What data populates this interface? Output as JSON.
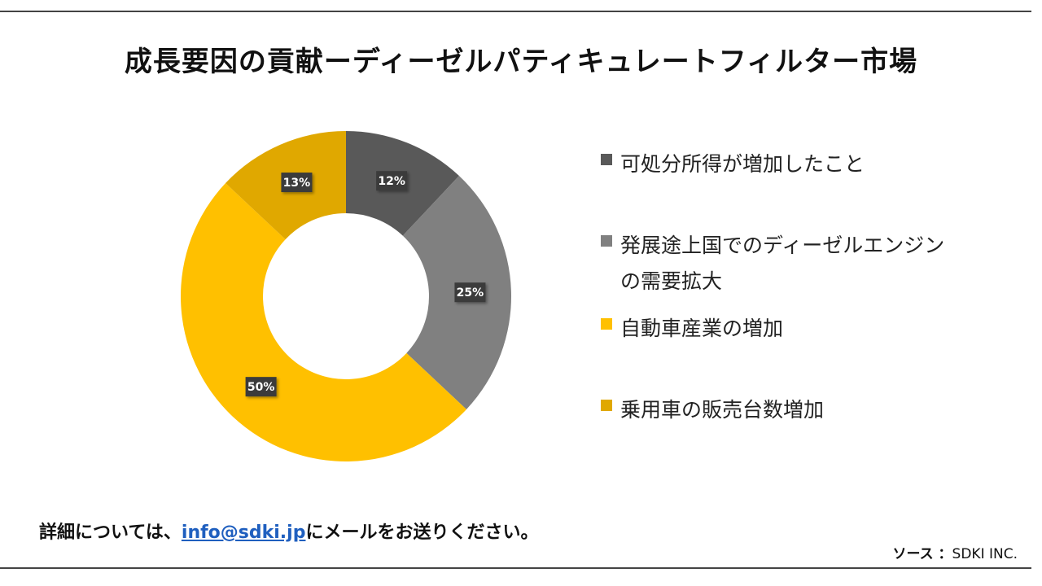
{
  "title": "成長要因の貢献ーディーゼルパティキュレートフィルター市場",
  "colors": {
    "c1": "#595959",
    "c2": "#808080",
    "c3": "#FFC000",
    "c4": "#E0A800",
    "label_bg": "#3b3b3b",
    "rule": "#444444",
    "link": "#1f5fbf"
  },
  "chart_data": {
    "type": "pie",
    "donut": true,
    "legend_position": "right",
    "categories": [
      "可処分所得が増加したこと",
      "発展途上国でのディーゼルエンジンの需要拡大",
      "自動車産業の増加",
      "乗用車の販売台数増加"
    ],
    "values": [
      12,
      25,
      50,
      13
    ],
    "data_labels": [
      "12%",
      "25%",
      "50%",
      "13%"
    ]
  },
  "legend": {
    "items": [
      {
        "label": "可処分所得が増加したこと"
      },
      {
        "label": "発展途上国でのディーゼルエンジンの需要拡大"
      },
      {
        "label": "自動車産業の増加"
      },
      {
        "label": "乗用車の販売台数増加"
      }
    ]
  },
  "footer": {
    "prefix": "詳細については、",
    "email": "info@sdki.jp",
    "suffix": "にメールをお送りください。"
  },
  "source": {
    "label": "ソース ：",
    "value": "SDKI INC."
  }
}
